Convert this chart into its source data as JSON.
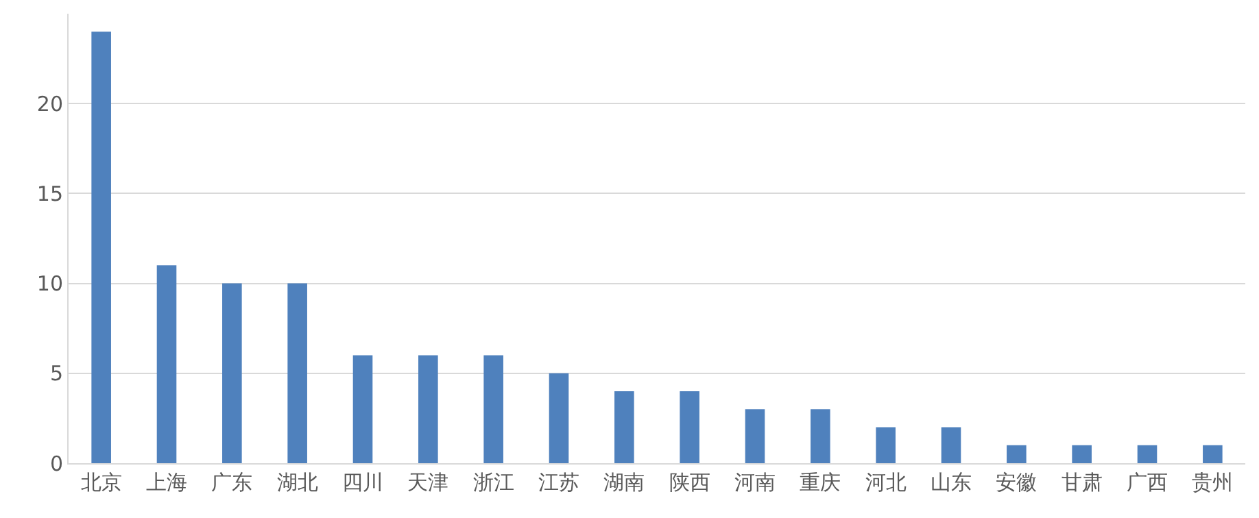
{
  "chart_data": {
    "type": "bar",
    "categories": [
      "北京",
      "上海",
      "广东",
      "湖北",
      "四川",
      "天津",
      "浙江",
      "江苏",
      "湖南",
      "陕西",
      "河南",
      "重庆",
      "河北",
      "山东",
      "安徽",
      "甘肃",
      "广西",
      "贵州"
    ],
    "values": [
      24,
      11,
      10,
      10,
      6,
      6,
      6,
      5,
      4,
      4,
      3,
      3,
      2,
      2,
      1,
      1,
      1,
      1
    ],
    "color": "#4f81bd",
    "ylim": [
      0,
      25
    ],
    "yticks": [
      0,
      5,
      10,
      15,
      20
    ],
    "grid": "y"
  }
}
